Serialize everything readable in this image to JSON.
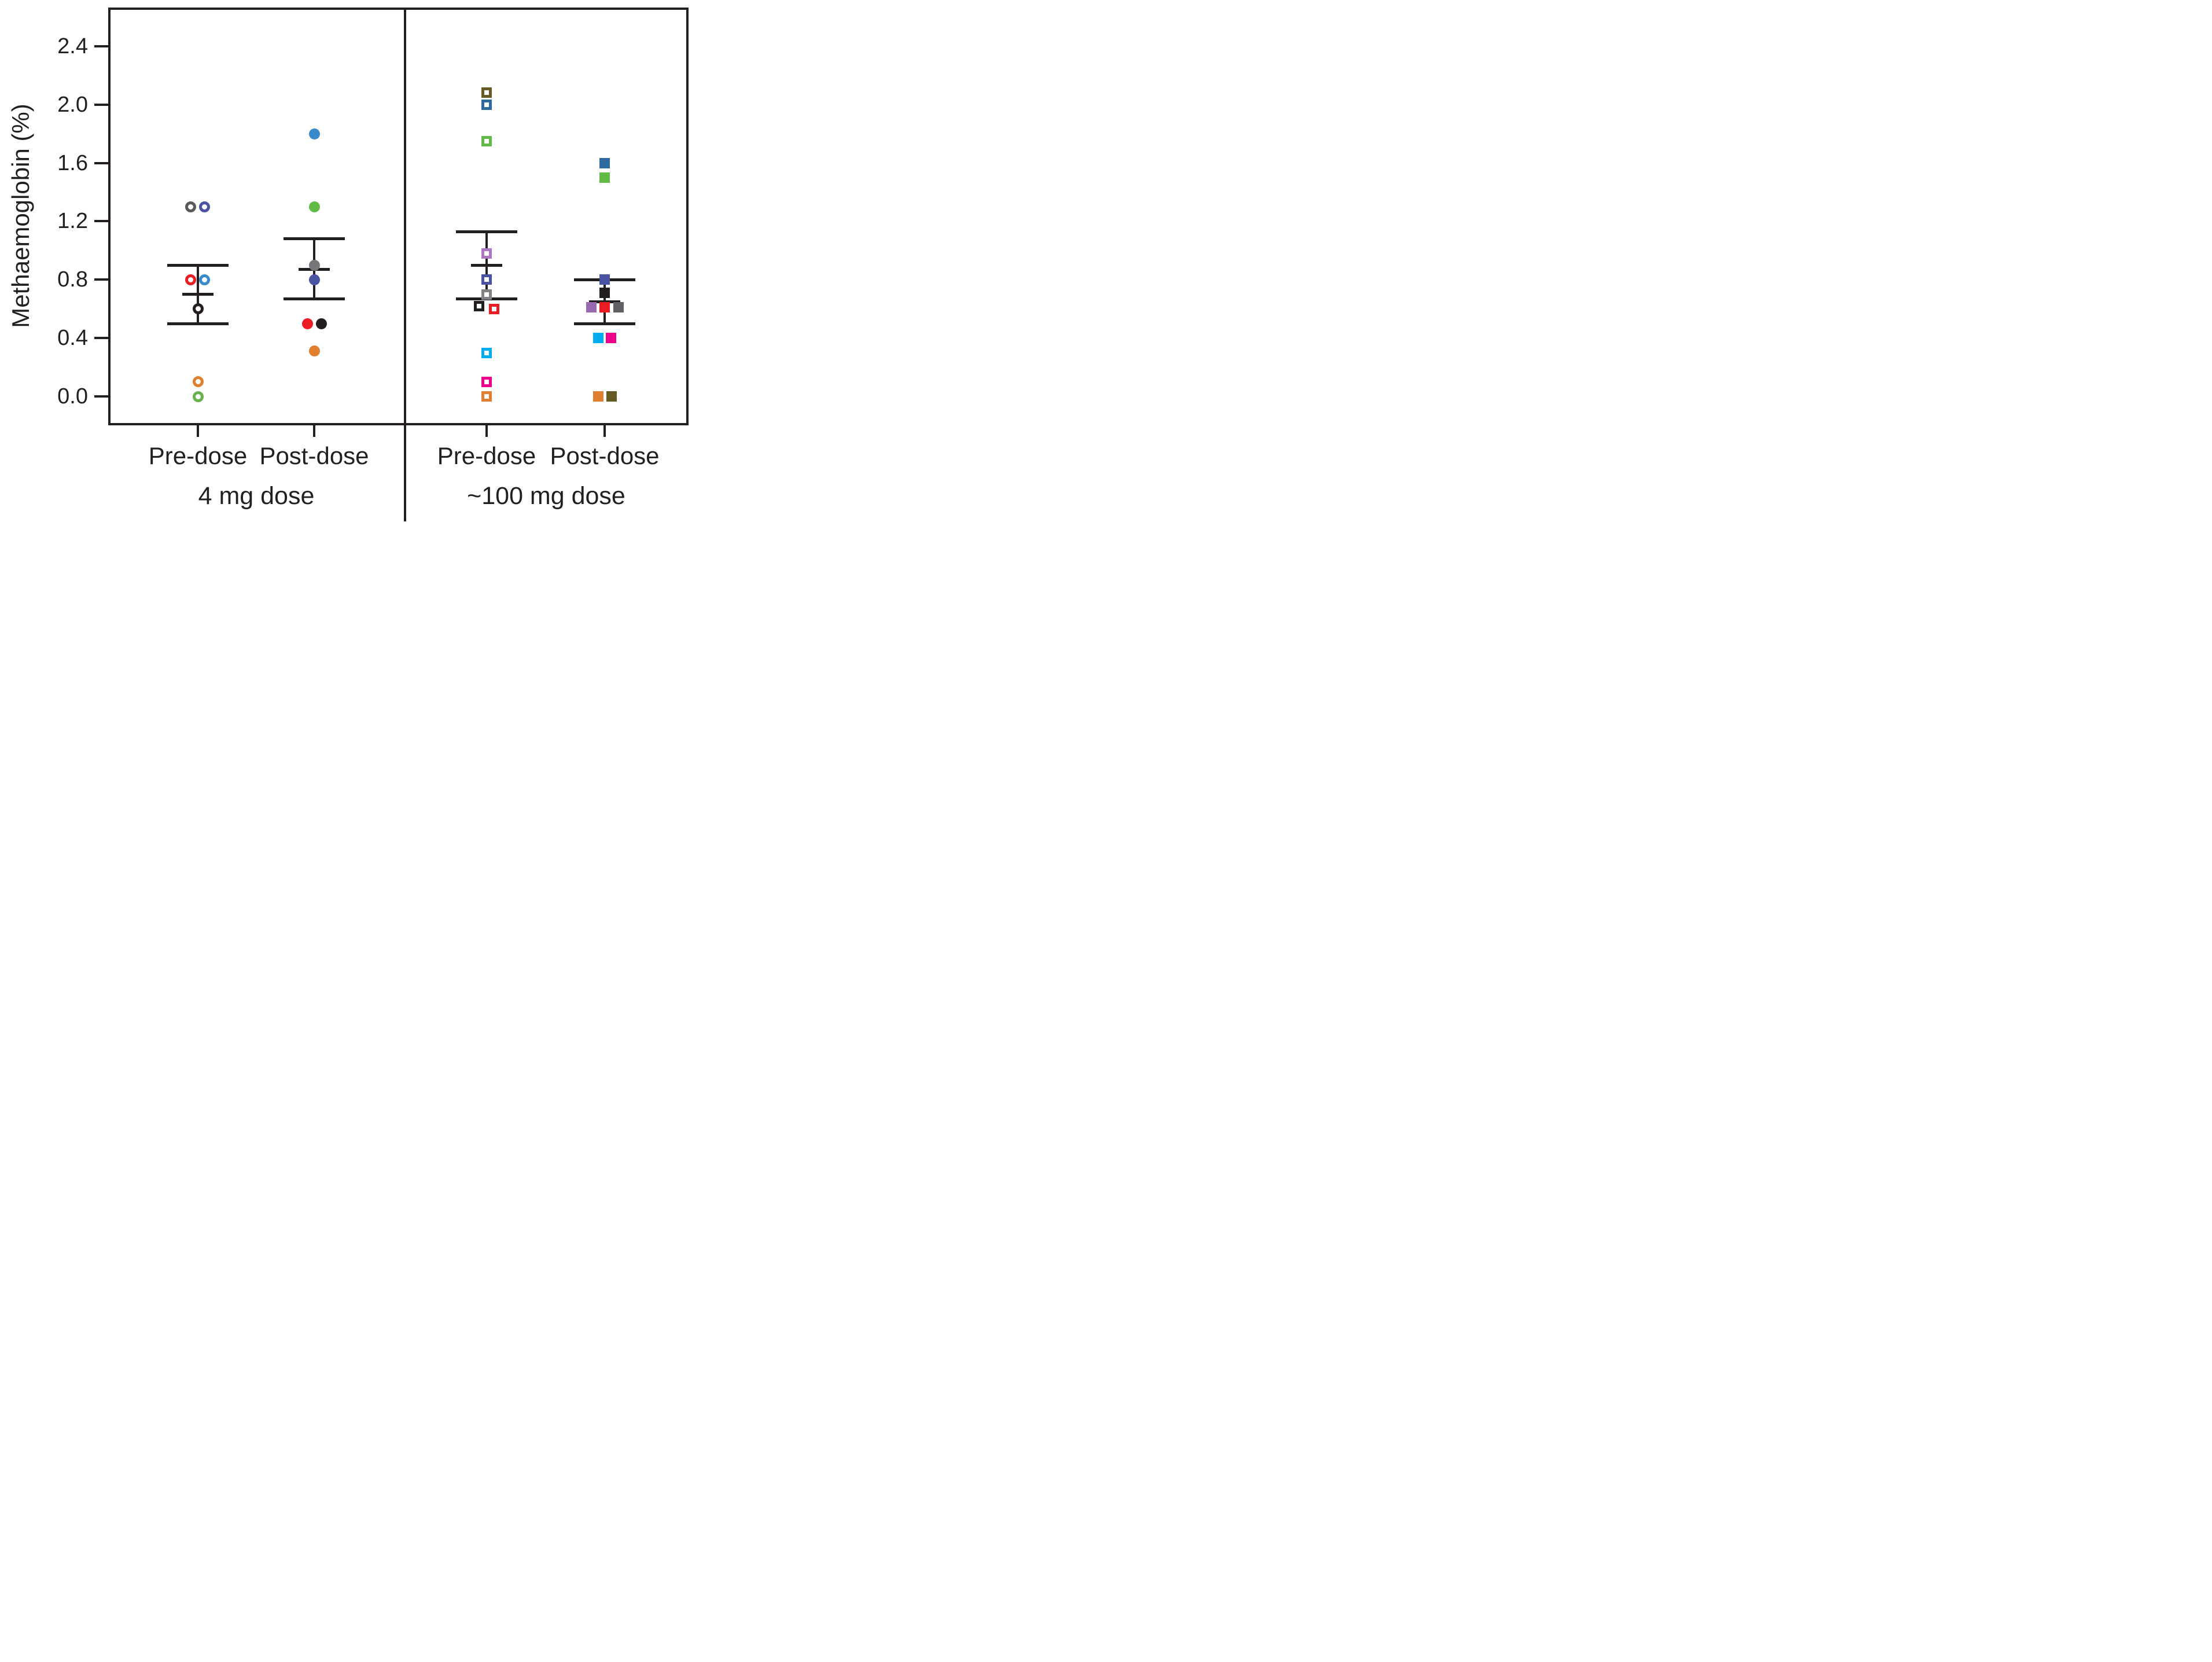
{
  "chart_data": {
    "type": "scatter",
    "title": "",
    "ylabel": "Methaemoglobin (%)",
    "xlabel": "",
    "ylim": [
      -0.2,
      2.66
    ],
    "grid": false,
    "axis_color": "#231F20",
    "background": "#FFFFFF",
    "yticks": [
      {
        "label": "2.4",
        "value": 2.4
      },
      {
        "label": "2.0",
        "value": 2.0
      },
      {
        "label": "1.6",
        "value": 1.6
      },
      {
        "label": "1.2",
        "value": 1.2
      },
      {
        "label": "0.8",
        "value": 0.8
      },
      {
        "label": "0.4",
        "value": 0.4
      },
      {
        "label": "0.0",
        "value": 0.0
      }
    ],
    "panels": [
      {
        "label": "4 mg dose",
        "groups": [
          {
            "label": "Pre-dose",
            "marker": "open-circle",
            "mean": 0.7,
            "err_high": 0.9,
            "err_low": 0.5,
            "points": [
              {
                "value": 1.3,
                "color": "#58595B",
                "dx": -13
              },
              {
                "value": 1.3,
                "color": "#4A53A2",
                "dx": 11
              },
              {
                "value": 0.8,
                "color": "#EC1C24",
                "dx": -13
              },
              {
                "value": 0.8,
                "color": "#3A8ACA",
                "dx": 11
              },
              {
                "value": 0.6,
                "color": "#231F20",
                "dx": 0
              },
              {
                "value": 0.1,
                "color": "#DF7F2F",
                "dx": 0
              },
              {
                "value": 0.0,
                "color": "#6AB14E",
                "dx": 0
              }
            ]
          },
          {
            "label": "Post-dose",
            "marker": "filled-circle",
            "mean": 0.87,
            "err_high": 1.08,
            "err_low": 0.67,
            "points": [
              {
                "value": 1.8,
                "color": "#3A8ACA",
                "dx": 0
              },
              {
                "value": 1.3,
                "color": "#62BB46",
                "dx": 0
              },
              {
                "value": 0.9,
                "color": "#76777A",
                "dx": 0
              },
              {
                "value": 0.8,
                "color": "#4A53A2",
                "dx": 0
              },
              {
                "value": 0.5,
                "color": "#EC1C24",
                "dx": -12
              },
              {
                "value": 0.5,
                "color": "#231F20",
                "dx": 12
              },
              {
                "value": 0.31,
                "color": "#DF7F2F",
                "dx": 0
              }
            ]
          }
        ]
      },
      {
        "label": "~100 mg dose",
        "groups": [
          {
            "label": "Pre-dose",
            "marker": "open-square",
            "mean": 0.9,
            "err_high": 1.13,
            "err_low": 0.67,
            "points": [
              {
                "value": 2.08,
                "color": "#655A23",
                "dx": 0
              },
              {
                "value": 2.0,
                "color": "#2E6A9E",
                "dx": 0
              },
              {
                "value": 1.75,
                "color": "#62BB46",
                "dx": 0
              },
              {
                "value": 0.98,
                "color": "#AD77C4",
                "dx": 0
              },
              {
                "value": 0.8,
                "color": "#4A53A2",
                "dx": 0
              },
              {
                "value": 0.7,
                "color": "#808285",
                "dx": 0
              },
              {
                "value": 0.62,
                "color": "#231F20",
                "dx": -13
              },
              {
                "value": 0.6,
                "color": "#EC1C24",
                "dx": 13
              },
              {
                "value": 0.3,
                "color": "#00AEEF",
                "dx": 0
              },
              {
                "value": 0.1,
                "color": "#EC008C",
                "dx": 0
              },
              {
                "value": 0.0,
                "color": "#DF7F2F",
                "dx": 0
              }
            ]
          },
          {
            "label": "Post-dose",
            "marker": "filled-square",
            "mean": 0.65,
            "err_high": 0.8,
            "err_low": 0.5,
            "points": [
              {
                "value": 1.6,
                "color": "#2E6A9E",
                "dx": 0
              },
              {
                "value": 1.5,
                "color": "#62BB46",
                "dx": 0
              },
              {
                "value": 0.8,
                "color": "#4A53A2",
                "dx": 0
              },
              {
                "value": 0.71,
                "color": "#231F20",
                "dx": 0
              },
              {
                "value": 0.61,
                "color": "#9A6AB0",
                "dx": -23
              },
              {
                "value": 0.61,
                "color": "#EC1C24",
                "dx": 0
              },
              {
                "value": 0.61,
                "color": "#5F6167",
                "dx": 24
              },
              {
                "value": 0.4,
                "color": "#00AEEF",
                "dx": -11
              },
              {
                "value": 0.4,
                "color": "#EC008C",
                "dx": 11
              },
              {
                "value": 0.0,
                "color": "#DF7F2F",
                "dx": -11
              },
              {
                "value": 0.0,
                "color": "#655A23",
                "dx": 12
              }
            ]
          }
        ]
      }
    ]
  }
}
